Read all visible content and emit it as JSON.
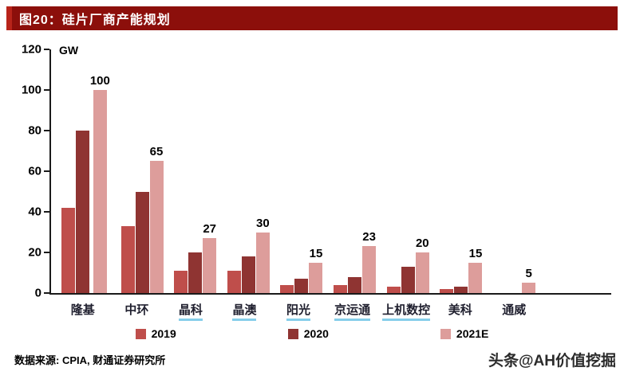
{
  "header": {
    "title": "图20：硅片厂商产能规划"
  },
  "chart_data": {
    "type": "bar",
    "title": "图20：硅片厂商产能规划",
    "unit_label": "GW",
    "ylim": [
      0,
      120
    ],
    "yticks": [
      0,
      20,
      40,
      60,
      80,
      100,
      120
    ],
    "grid": false,
    "legend_position": "bottom",
    "categories": [
      "隆基",
      "中环",
      "晶科",
      "晶澳",
      "阳光",
      "京运通",
      "上机数控",
      "美科",
      "通威"
    ],
    "underlined_categories": [
      "晶科",
      "晶澳",
      "阳光",
      "京运通",
      "上机数控"
    ],
    "series": [
      {
        "name": "2019",
        "color": "#BF4E4B",
        "values": [
          42,
          33,
          11,
          11,
          4,
          4,
          3,
          2,
          0
        ]
      },
      {
        "name": "2020",
        "color": "#8F3432",
        "values": [
          80,
          50,
          20,
          18,
          7,
          8,
          13,
          3,
          0
        ]
      },
      {
        "name": "2021E",
        "color": "#DD9D9B",
        "values": [
          100,
          65,
          27,
          30,
          15,
          23,
          20,
          15,
          5
        ],
        "show_labels": true
      }
    ]
  },
  "footer": {
    "source": "数据来源: CPIA, 财通证券研究所",
    "watermark": "头条@AH价值挖掘"
  },
  "colors": {
    "title_bar_bg": "#8C0F0B",
    "underline": "#86CEEA",
    "axis": "#1a1a1a"
  }
}
